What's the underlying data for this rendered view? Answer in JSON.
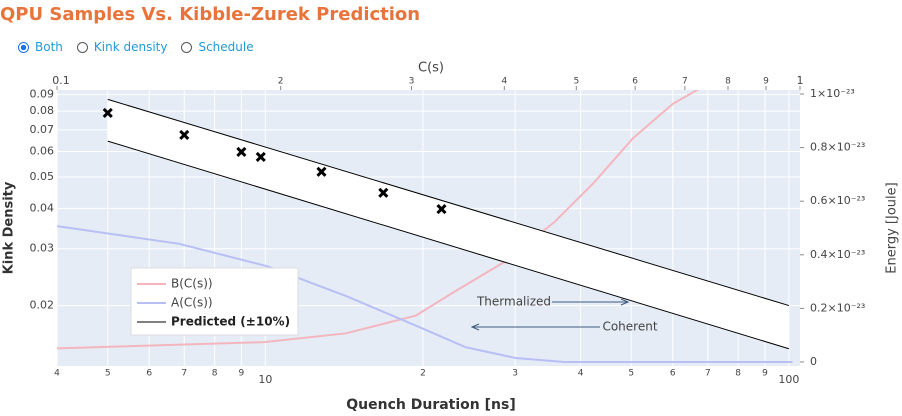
{
  "chart_data": {
    "type": "line",
    "title": "QPU Samples Vs. Kibble-Zurek Prediction",
    "options": [
      "Both",
      "Kink density",
      "Schedule"
    ],
    "selected": "Both",
    "x_label": "Quench Duration [ns]",
    "x2_label": "C(s)",
    "y_label": "Kink Density",
    "y2_label": "Energy  [Joule]",
    "xlog": true,
    "x2log": true,
    "ylog": true,
    "grid": true,
    "xlim": [
      4,
      105
    ],
    "xticks": [
      4,
      5,
      6,
      7,
      8,
      9,
      10,
      {
        "value": 20,
        "label": "2"
      },
      {
        "value": 30,
        "label": "3"
      },
      {
        "value": 40,
        "label": "4"
      },
      {
        "value": 50,
        "label": "5"
      },
      {
        "value": 60,
        "label": "6"
      },
      {
        "value": 70,
        "label": "7"
      },
      {
        "value": 80,
        "label": "8"
      },
      {
        "value": 90,
        "label": "9"
      },
      100
    ],
    "x2lim": [
      0.1,
      1
    ],
    "x2ticks": [
      0.1,
      {
        "value": 0.2,
        "label": "2"
      },
      {
        "value": 0.3,
        "label": "3"
      },
      {
        "value": 0.4,
        "label": "4"
      },
      {
        "value": 0.5,
        "label": "5"
      },
      {
        "value": 0.6,
        "label": "6"
      },
      {
        "value": 0.7,
        "label": "7"
      },
      {
        "value": 0.8,
        "label": "8"
      },
      {
        "value": 0.9,
        "label": "9"
      },
      1
    ],
    "ylim": [
      0.013,
      0.093
    ],
    "yticks": [
      0.02,
      0.03,
      0.04,
      0.05,
      0.06,
      0.07,
      0.08,
      0.09
    ],
    "y2lim": [
      -1.5e-25,
      1.015e-23
    ],
    "y2ticks": [
      0,
      {
        "value": 2e-24,
        "label": "0.2×10⁻²³"
      },
      {
        "value": 4e-24,
        "label": "0.4×10⁻²³"
      },
      {
        "value": 6e-24,
        "label": "0.6×10⁻²³"
      },
      {
        "value": 8e-24,
        "label": "0.8×10⁻²³"
      },
      {
        "value": 1e-23,
        "label": "1×10⁻²³"
      }
    ],
    "series": [
      {
        "name": "B(C(s))",
        "color": "#f4b6be",
        "axis": "y2",
        "xaxis": "x2",
        "x": [
          0.1,
          0.19,
          0.245,
          0.304,
          0.344,
          0.401,
          0.467,
          0.528,
          0.596,
          0.674,
          0.73
        ],
        "values": [
          5.1e-25,
          7.4e-25,
          1.07e-24,
          1.73e-24,
          2.65e-24,
          3.75e-24,
          5.22e-24,
          6.69e-24,
          8.35e-24,
          9.63e-24,
          1.018e-23
        ]
      },
      {
        "name": "A(C(s))",
        "color": "#b8bff5",
        "axis": "y2",
        "xaxis": "x2",
        "x": [
          0.1,
          0.146,
          0.192,
          0.245,
          0.304,
          0.355,
          0.414,
          0.482,
          0.977
        ],
        "values": [
          5.07e-24,
          4.41e-24,
          3.57e-24,
          2.46e-24,
          1.36e-24,
          5.5e-25,
          1.5e-25,
          0,
          0
        ]
      },
      {
        "name": "Predicted (±10%)",
        "color": "#000000",
        "x": [
          5,
          100
        ],
        "values": [
          0.087,
          0.02
        ],
        "lower": [
          0.0646,
          0.0147
        ]
      }
    ],
    "samples": {
      "x": [
        5,
        7,
        9,
        9.8,
        12.8,
        16.8,
        21.7
      ],
      "values": [
        0.079,
        0.0675,
        0.0598,
        0.0577,
        0.0519,
        0.0447,
        0.0398
      ]
    },
    "annotations": [
      "Thermalized",
      "Coherent"
    ]
  }
}
